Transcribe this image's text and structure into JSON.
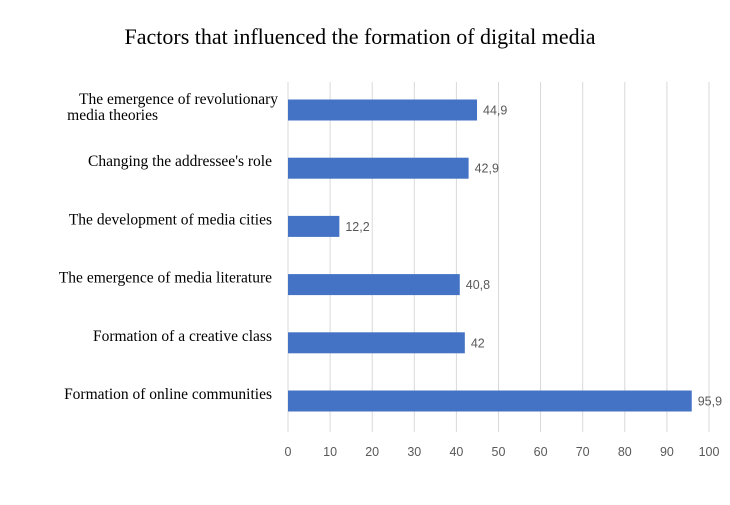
{
  "chart_data": {
    "type": "bar",
    "orientation": "horizontal",
    "title": "Factors that influenced the formation of digital media",
    "categories": [
      [
        "The emergence of revolutionary",
        "media theories"
      ],
      [
        "Changing the addressee's role"
      ],
      [
        "The development of media cities"
      ],
      [
        "The emergence of media literature"
      ],
      [
        "Formation of a creative class"
      ],
      [
        "Formation of online communities"
      ]
    ],
    "values": [
      44.9,
      42.9,
      12.2,
      40.8,
      42,
      95.9
    ],
    "value_labels": [
      "44,9",
      "42,9",
      "12,2",
      "40,8",
      "42",
      "95,9"
    ],
    "xlim": [
      0,
      100
    ],
    "xticks": [
      0,
      10,
      20,
      30,
      40,
      50,
      60,
      70,
      80,
      90,
      100
    ],
    "xlabel": "",
    "ylabel": "",
    "grid": "vertical",
    "bar_color": "#4472c4",
    "legend": "none"
  }
}
